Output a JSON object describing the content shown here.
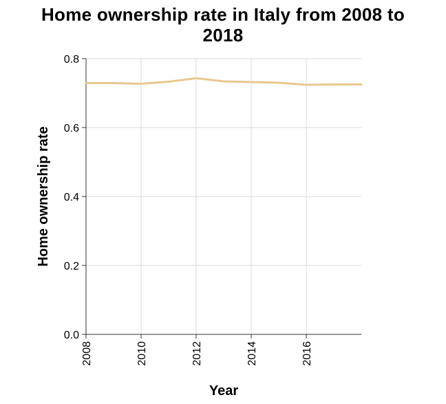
{
  "chart_data": {
    "type": "line",
    "title_lines": [
      "Home ownership rate in Italy from 2008 to",
      "2018"
    ],
    "xlabel": "Year",
    "ylabel": "Home ownership rate",
    "xlim": [
      2008,
      2018
    ],
    "ylim": [
      0,
      0.8
    ],
    "x_ticks": [
      2008,
      2010,
      2012,
      2014,
      2016
    ],
    "y_ticks": [
      0.0,
      0.2,
      0.4,
      0.6,
      0.8
    ],
    "y_tick_labels": [
      "0.0",
      "0.2",
      "0.4",
      "0.6",
      "0.8"
    ],
    "grid": true,
    "line_color": "#e8c88e",
    "series": [
      {
        "x": [
          2008,
          2009,
          2010,
          2011,
          2012,
          2013,
          2014,
          2015,
          2016,
          2017,
          2018
        ],
        "values": [
          0.729,
          0.729,
          0.727,
          0.733,
          0.743,
          0.734,
          0.732,
          0.73,
          0.724,
          0.725,
          0.725
        ]
      }
    ]
  }
}
